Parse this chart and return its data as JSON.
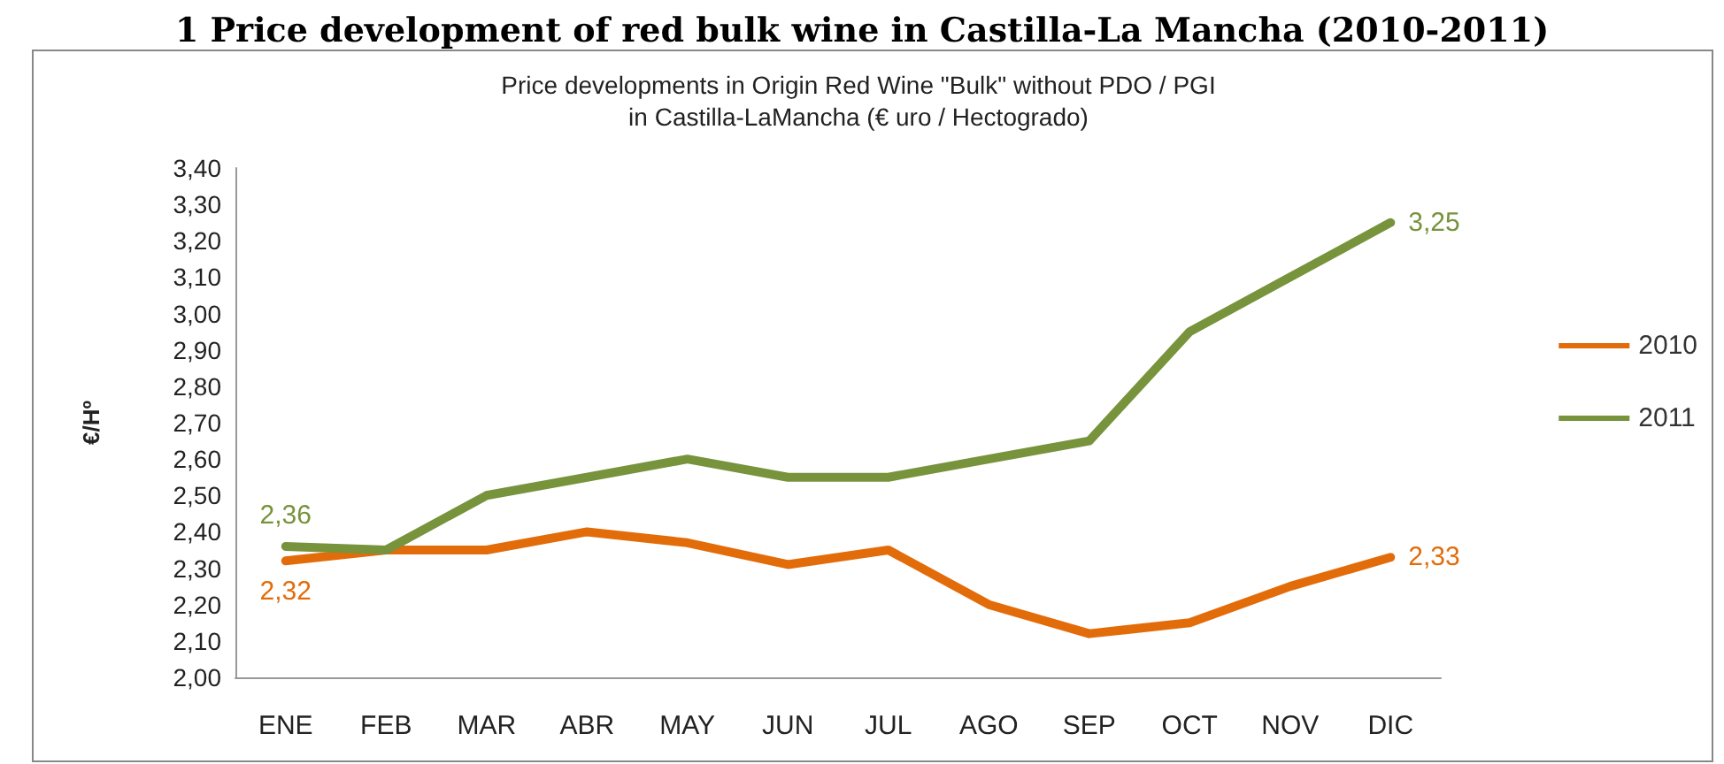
{
  "chart_data": {
    "type": "line",
    "title": "1 Price development of red bulk wine in Castilla-La Mancha (2010-2011)",
    "subtitle": "Price developments in Origin Red Wine \"Bulk\" without PDO / PGI\nin Castilla-LaMancha (€ uro / Hectogrado)",
    "ylabel": "€/Hº",
    "categories": [
      "ENE",
      "FEB",
      "MAR",
      "ABR",
      "MAY",
      "JUN",
      "JUL",
      "AGO",
      "SEP",
      "OCT",
      "NOV",
      "DIC"
    ],
    "series": [
      {
        "name": "2010",
        "color": "#e36c0a",
        "values": [
          2.32,
          2.35,
          2.35,
          2.4,
          2.37,
          2.31,
          2.35,
          2.2,
          2.12,
          2.15,
          2.25,
          2.33
        ],
        "value_labels": [
          "2,32",
          null,
          null,
          null,
          null,
          null,
          null,
          null,
          null,
          null,
          null,
          "2,33"
        ]
      },
      {
        "name": "2011",
        "color": "#77933c",
        "values": [
          2.36,
          2.35,
          2.5,
          2.55,
          2.6,
          2.55,
          2.55,
          2.6,
          2.65,
          2.95,
          3.1,
          3.25
        ],
        "value_labels": [
          "2,36",
          null,
          null,
          null,
          null,
          null,
          null,
          null,
          null,
          null,
          null,
          "3,25"
        ]
      }
    ],
    "ylim": [
      2.0,
      3.4
    ],
    "yticks": [
      {
        "value": 2.0,
        "label": "2,00"
      },
      {
        "value": 2.1,
        "label": "2,10"
      },
      {
        "value": 2.2,
        "label": "2,20"
      },
      {
        "value": 2.3,
        "label": "2,30"
      },
      {
        "value": 2.4,
        "label": "2,40"
      },
      {
        "value": 2.5,
        "label": "2,50"
      },
      {
        "value": 2.6,
        "label": "2,60"
      },
      {
        "value": 2.7,
        "label": "2,70"
      },
      {
        "value": 2.8,
        "label": "2,80"
      },
      {
        "value": 2.9,
        "label": "2,90"
      },
      {
        "value": 3.0,
        "label": "3,00"
      },
      {
        "value": 3.1,
        "label": "3,10"
      },
      {
        "value": 3.2,
        "label": "3,20"
      },
      {
        "value": 3.3,
        "label": "3,30"
      },
      {
        "value": 3.4,
        "label": "3,40"
      }
    ],
    "grid": false,
    "legend": "right",
    "marker": "none",
    "line_style": "solid"
  }
}
